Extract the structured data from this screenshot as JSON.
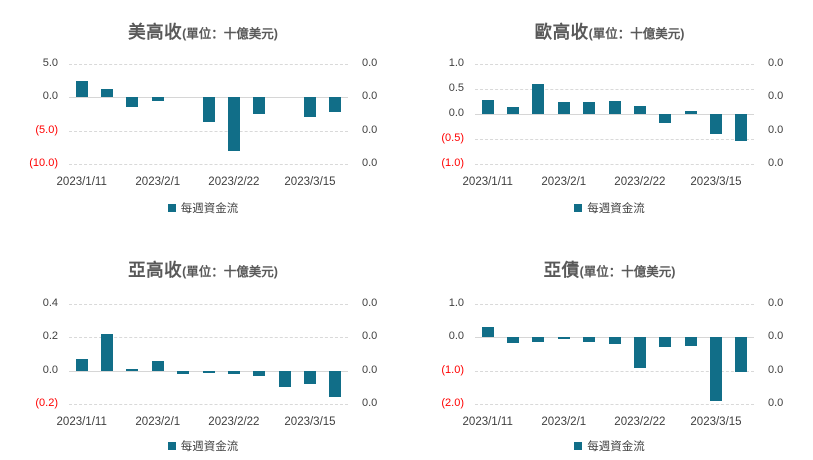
{
  "colors": {
    "bar": "#116e88",
    "title": "#595959",
    "axis_label": "#3f3f3f",
    "axis_label_negative": "#ff0000",
    "gridline": "#d9d9d9",
    "zero_line": "#d6d6d6",
    "background": "#ffffff"
  },
  "chart_data": [
    {
      "id": "us-high-yield",
      "type": "bar",
      "title": "美高收",
      "unit_label": "(單位：十億美元)",
      "legend": "每週資金流",
      "values": [
        2.4,
        1.25,
        -1.4,
        -0.5,
        0,
        -3.7,
        -8.0,
        -2.5,
        0,
        -2.9,
        -2.2
      ],
      "ylim": [
        -10,
        5
      ],
      "yticks_left": [
        {
          "value": 5,
          "label": "5.0",
          "negative": false
        },
        {
          "value": 0,
          "label": "0.0",
          "negative": false
        },
        {
          "value": -5,
          "label": "(5.0)",
          "negative": true
        },
        {
          "value": -10,
          "label": "(10.0)",
          "negative": true
        }
      ],
      "yticks_right": [
        "0.0",
        "0.0",
        "0.0",
        "0.0"
      ],
      "x_visible_ticks": [
        {
          "slot": 0,
          "label": "2023/1/11"
        },
        {
          "slot": 3,
          "label": "2023/2/1"
        },
        {
          "slot": 6,
          "label": "2023/2/22"
        },
        {
          "slot": 9,
          "label": "2023/3/15"
        }
      ]
    },
    {
      "id": "europe-high-yield",
      "type": "bar",
      "title": "歐高收",
      "unit_label": "(單位：十億美元)",
      "legend": "每週資金流",
      "values": [
        0.28,
        0.15,
        0.6,
        0.25,
        0.25,
        0.26,
        0.16,
        -0.17,
        0.07,
        -0.4,
        -0.54
      ],
      "ylim": [
        -1,
        1
      ],
      "yticks_left": [
        {
          "value": 1,
          "label": "1.0",
          "negative": false
        },
        {
          "value": 0.5,
          "label": "0.5",
          "negative": false
        },
        {
          "value": 0,
          "label": "0.0",
          "negative": false
        },
        {
          "value": -0.5,
          "label": "(0.5)",
          "negative": true
        },
        {
          "value": -1,
          "label": "(1.0)",
          "negative": true
        }
      ],
      "yticks_right": [
        "0.0",
        "0.0",
        "0.0",
        "0.0"
      ],
      "x_visible_ticks": [
        {
          "slot": 0,
          "label": "2023/1/11"
        },
        {
          "slot": 3,
          "label": "2023/2/1"
        },
        {
          "slot": 6,
          "label": "2023/2/22"
        },
        {
          "slot": 9,
          "label": "2023/3/15"
        }
      ]
    },
    {
      "id": "asia-high-yield",
      "type": "bar",
      "title": "亞高收",
      "unit_label": "(單位：十億美元)",
      "legend": "每週資金流",
      "values": [
        0.07,
        0.22,
        0.01,
        0.06,
        -0.02,
        -0.015,
        -0.02,
        -0.03,
        -0.1,
        -0.08,
        -0.16
      ],
      "ylim": [
        -0.2,
        0.4
      ],
      "yticks_left": [
        {
          "value": 0.4,
          "label": "0.4",
          "negative": false
        },
        {
          "value": 0.2,
          "label": "0.2",
          "negative": false
        },
        {
          "value": 0,
          "label": "0.0",
          "negative": false
        },
        {
          "value": -0.2,
          "label": "(0.2)",
          "negative": true
        }
      ],
      "yticks_right": [
        "0.0",
        "0.0",
        "0.0",
        "0.0"
      ],
      "x_visible_ticks": [
        {
          "slot": 0,
          "label": "2023/1/11"
        },
        {
          "slot": 3,
          "label": "2023/2/1"
        },
        {
          "slot": 6,
          "label": "2023/2/22"
        },
        {
          "slot": 9,
          "label": "2023/3/15"
        }
      ]
    },
    {
      "id": "asia-bond",
      "type": "bar",
      "title": "亞債",
      "unit_label": "(單位：十億美元)",
      "legend": "每週資金流",
      "values": [
        0.3,
        -0.18,
        -0.13,
        -0.04,
        -0.13,
        -0.21,
        -0.93,
        -0.28,
        -0.25,
        -1.9,
        -1.03
      ],
      "ylim": [
        -2,
        1
      ],
      "yticks_left": [
        {
          "value": 1,
          "label": "1.0",
          "negative": false
        },
        {
          "value": 0,
          "label": "0.0",
          "negative": false
        },
        {
          "value": -1,
          "label": "(1.0)",
          "negative": true
        },
        {
          "value": -2,
          "label": "(2.0)",
          "negative": true
        }
      ],
      "yticks_right": [
        "0.0",
        "0.0",
        "0.0",
        "0.0"
      ],
      "x_visible_ticks": [
        {
          "slot": 0,
          "label": "2023/1/11"
        },
        {
          "slot": 3,
          "label": "2023/2/1"
        },
        {
          "slot": 6,
          "label": "2023/2/22"
        },
        {
          "slot": 9,
          "label": "2023/3/15"
        }
      ]
    }
  ]
}
